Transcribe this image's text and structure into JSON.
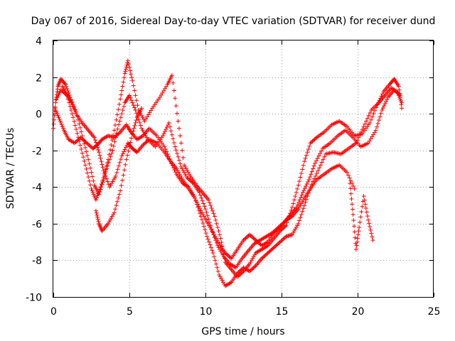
{
  "chart_data": {
    "type": "scatter",
    "title": "Day 067 of 2016, Sidereal Day-to-day VTEC variation (SDTVAR) for receiver dund",
    "xlabel": "GPS time / hours",
    "ylabel": "SDTVAR / TECUs",
    "xlim": [
      0,
      25
    ],
    "ylim": [
      -10,
      4
    ],
    "xticks": [
      0,
      5,
      10,
      15,
      20,
      25
    ],
    "yticks": [
      -10,
      -8,
      -6,
      -4,
      -2,
      0,
      2,
      4
    ],
    "xtick_labels": [
      "0",
      "5",
      "10",
      "15",
      "20",
      "25"
    ],
    "ytick_labels": [
      "-10",
      "-8",
      "-6",
      "-4",
      "-2",
      "0",
      "2",
      "4"
    ],
    "grid": true,
    "marker": "+",
    "series": [
      {
        "name": "track-1",
        "color": "#ff0000",
        "x": [
          0.0,
          0.15,
          0.3,
          0.5,
          0.8,
          1.1,
          1.5,
          1.9,
          2.3,
          2.7,
          3.0,
          3.3,
          3.6,
          4.0,
          4.4,
          4.7,
          4.9,
          5.2,
          5.6,
          6.0,
          6.5,
          7.0,
          7.5,
          7.8,
          8.2,
          8.6,
          9.0,
          9.4,
          9.8,
          10.2,
          10.6,
          11.0,
          11.3,
          11.7,
          12.1,
          12.5,
          12.9,
          13.3,
          13.7,
          14.1,
          14.5,
          14.9,
          15.3,
          15.7,
          16.1,
          16.5,
          16.9,
          17.3,
          17.8,
          18.3,
          18.8,
          19.3,
          19.8,
          20.3,
          20.8,
          21.3,
          21.7,
          22.1,
          22.4,
          22.7,
          22.9
        ],
        "y": [
          -0.8,
          0.6,
          1.5,
          1.9,
          1.6,
          0.9,
          0.1,
          -1.2,
          -2.5,
          -3.9,
          -4.4,
          -3.6,
          -2.5,
          -0.9,
          0.8,
          2.2,
          2.9,
          1.8,
          0.2,
          -0.4,
          0.3,
          0.9,
          1.6,
          2.1,
          -0.4,
          -2.8,
          -3.4,
          -3.9,
          -4.3,
          -4.7,
          -5.6,
          -6.8,
          -8.1,
          -8.5,
          -8.9,
          -8.6,
          -8.2,
          -7.6,
          -7.4,
          -7.2,
          -6.8,
          -6.4,
          -6.1,
          -5.1,
          -3.9,
          -2.6,
          -1.6,
          -1.3,
          -1.0,
          -0.6,
          -0.4,
          -0.7,
          -1.2,
          -1.1,
          -0.5,
          0.5,
          1.2,
          1.6,
          1.9,
          1.5,
          0.3
        ]
      },
      {
        "name": "track-2",
        "color": "#ff0000",
        "x": [
          0.2,
          0.5,
          0.9,
          1.3,
          1.7,
          2.1,
          2.5,
          2.8,
          3.1,
          3.5,
          3.9,
          4.3,
          4.7,
          5.0,
          5.4,
          5.8,
          6.2,
          6.7,
          7.2,
          7.6,
          8.0,
          8.4,
          8.8,
          9.2,
          9.6,
          10.0,
          10.4,
          10.8,
          11.2,
          11.6,
          12.0,
          12.4,
          12.8,
          13.2,
          13.6,
          14.0,
          14.4,
          14.8,
          15.2,
          15.6,
          16.0,
          16.4,
          16.8,
          17.2,
          17.7,
          18.2,
          18.7,
          19.2,
          19.7,
          20.2,
          20.7,
          21.2,
          21.6,
          22.0,
          22.4,
          22.8
        ],
        "y": [
          0.8,
          1.3,
          1.0,
          -0.2,
          -1.5,
          -2.8,
          -4.1,
          -4.7,
          -4.0,
          -3.0,
          -2.0,
          -0.6,
          0.6,
          1.0,
          0.2,
          -0.8,
          -1.4,
          -1.8,
          -1.2,
          -0.5,
          -1.8,
          -2.9,
          -3.5,
          -3.8,
          -4.3,
          -5.2,
          -6.3,
          -7.2,
          -7.8,
          -8.2,
          -8.4,
          -7.9,
          -7.5,
          -7.1,
          -6.9,
          -6.7,
          -6.5,
          -6.2,
          -5.9,
          -5.5,
          -5.1,
          -4.3,
          -3.6,
          -2.7,
          -1.9,
          -1.6,
          -1.2,
          -0.9,
          -1.3,
          -1.8,
          -1.6,
          -0.9,
          0.2,
          0.9,
          1.3,
          1.0
        ]
      },
      {
        "name": "track-3",
        "color": "#ff0000",
        "x": [
          0.1,
          0.4,
          0.7,
          1.0,
          1.4,
          1.8,
          2.2,
          2.6,
          2.9,
          3.2,
          3.6,
          4.0,
          4.4,
          4.8,
          5.1,
          5.5,
          5.9,
          6.3,
          6.8,
          7.3,
          7.7,
          8.1,
          8.5,
          8.9,
          9.3,
          9.7,
          10.1,
          10.5,
          10.9,
          11.3,
          11.7,
          12.1,
          12.5,
          12.9,
          13.3,
          13.7,
          14.1,
          14.5,
          14.9,
          15.3,
          15.7,
          16.1,
          16.5,
          16.9,
          17.4,
          17.9,
          18.4,
          18.9,
          19.4,
          19.9,
          20.4,
          20.9,
          21.4,
          21.8,
          22.2,
          22.6,
          22.9
        ],
        "y": [
          0.3,
          -0.3,
          -0.9,
          -1.4,
          -1.6,
          -1.3,
          -1.6,
          -1.9,
          -1.7,
          -1.4,
          -1.2,
          -1.3,
          -1.0,
          -0.6,
          -1.0,
          -1.4,
          -1.2,
          -0.8,
          -1.2,
          -1.8,
          -2.6,
          -3.3,
          -3.8,
          -4.0,
          -4.6,
          -5.6,
          -6.7,
          -7.6,
          -8.8,
          -9.4,
          -9.2,
          -8.7,
          -8.4,
          -8.6,
          -8.3,
          -7.9,
          -7.6,
          -7.3,
          -7.0,
          -6.7,
          -6.6,
          -6.0,
          -5.0,
          -4.0,
          -3.1,
          -2.2,
          -2.1,
          -2.2,
          -1.9,
          -1.6,
          -0.7,
          0.2,
          0.6,
          1.0,
          1.4,
          1.2,
          0.6
        ]
      },
      {
        "name": "track-4",
        "color": "#ff0000",
        "x": [
          0.6,
          0.9,
          1.2,
          1.5,
          1.9,
          2.3,
          2.7,
          3.0,
          3.3,
          3.7,
          4.1,
          4.5,
          4.9,
          5.2,
          5.5,
          5.9,
          6.3,
          6.8,
          7.3,
          7.7,
          8.1,
          8.5,
          8.9,
          9.3,
          9.7,
          10.1,
          10.5,
          10.9,
          11.3,
          11.7,
          12.1,
          12.5,
          12.9,
          13.3,
          13.7,
          14.1,
          14.5,
          14.9,
          15.3,
          15.7,
          16.1,
          16.5,
          16.9,
          17.3,
          17.8,
          18.3,
          18.8,
          19.3,
          19.8
        ],
        "y": [
          1.5,
          1.0,
          0.6,
          0.0,
          -0.5,
          -0.9,
          -1.3,
          -2.1,
          -3.1,
          -4.0,
          -3.4,
          -2.3,
          -1.6,
          -1.9,
          -2.1,
          -1.7,
          -1.4,
          -1.6,
          -2.1,
          -2.6,
          -3.0,
          -3.6,
          -4.1,
          -4.6,
          -5.3,
          -5.9,
          -6.5,
          -7.1,
          -7.6,
          -7.9,
          -7.4,
          -6.9,
          -6.6,
          -6.9,
          -7.2,
          -7.0,
          -6.5,
          -6.2,
          -5.8,
          -5.6,
          -5.2,
          -4.6,
          -4.1,
          -3.6,
          -3.3,
          -3.0,
          -2.8,
          -3.2,
          -4.1
        ]
      },
      {
        "name": "track-5",
        "color": "#ff0000",
        "x": [
          2.8,
          3.0,
          3.2,
          3.6,
          4.0,
          4.4,
          4.8,
          5.2,
          5.5,
          5.8
        ],
        "y": [
          -5.3,
          -6.0,
          -6.4,
          -6.0,
          -5.4,
          -4.2,
          -2.5,
          -1.1,
          -0.2,
          0.3
        ]
      },
      {
        "name": "track-6",
        "color": "#ff0000",
        "x": [
          19.5,
          19.7,
          19.9,
          20.1,
          20.4,
          20.7,
          21.0
        ],
        "y": [
          -3.8,
          -5.5,
          -7.4,
          -6.2,
          -4.5,
          -5.8,
          -6.9
        ]
      }
    ]
  }
}
